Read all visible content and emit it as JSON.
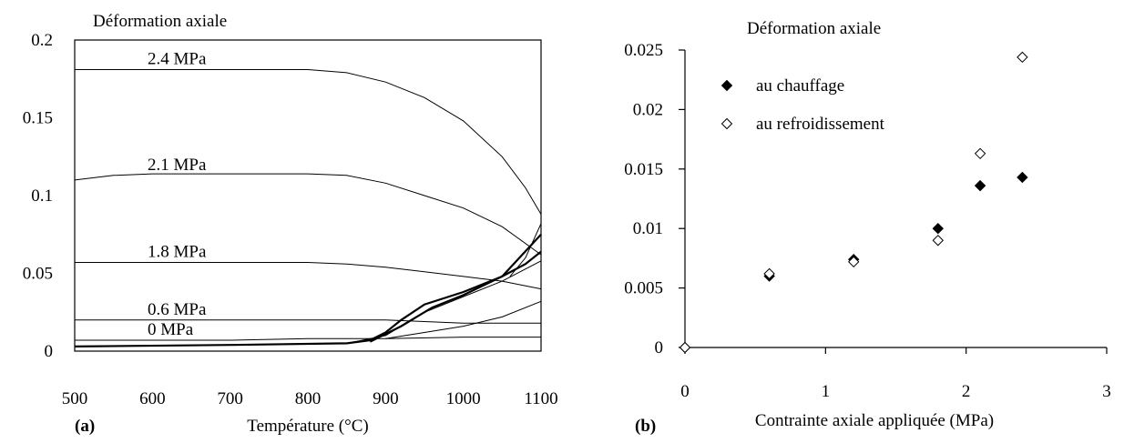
{
  "chart_data": [
    {
      "type": "line",
      "panel_label": "(a)",
      "title": "Déformation axiale",
      "xlabel": "Température (°C)",
      "ylabel": "",
      "xlim": [
        500,
        1100
      ],
      "ylim": [
        0,
        0.2
      ],
      "xticks": [
        "500",
        "600",
        "700",
        "800",
        "900",
        "1000",
        "1100"
      ],
      "yticks": [
        "0",
        "0.05",
        "0.1",
        "0.15",
        "0.2"
      ],
      "grid": false,
      "series": [
        {
          "name": "2.4 MPa",
          "x": [
            500,
            600,
            700,
            800,
            850,
            900,
            950,
            1000,
            1050,
            1080,
            1100
          ],
          "y": [
            0.181,
            0.181,
            0.181,
            0.181,
            0.179,
            0.173,
            0.163,
            0.148,
            0.125,
            0.105,
            0.088
          ]
        },
        {
          "name": "2.1 MPa",
          "x": [
            500,
            550,
            600,
            700,
            800,
            850,
            900,
            950,
            1000,
            1050,
            1100
          ],
          "y": [
            0.11,
            0.113,
            0.114,
            0.114,
            0.114,
            0.113,
            0.108,
            0.1,
            0.092,
            0.08,
            0.062
          ]
        },
        {
          "name": "1.8 MPa",
          "x": [
            500,
            600,
            700,
            800,
            850,
            900,
            950,
            1000,
            1050,
            1100
          ],
          "y": [
            0.057,
            0.057,
            0.057,
            0.057,
            0.056,
            0.054,
            0.051,
            0.048,
            0.045,
            0.04
          ]
        },
        {
          "name": "0.6 MPa",
          "x": [
            500,
            600,
            700,
            800,
            850,
            900,
            950,
            1000,
            1050,
            1100
          ],
          "y": [
            0.02,
            0.02,
            0.02,
            0.02,
            0.02,
            0.02,
            0.019,
            0.018,
            0.018,
            0.018
          ]
        },
        {
          "name": "0 MPa",
          "x": [
            500,
            600,
            700,
            800,
            900,
            1000,
            1100
          ],
          "y": [
            0.007,
            0.007,
            0.007,
            0.008,
            0.008,
            0.009,
            0.009
          ]
        },
        {
          "name": "",
          "x": [
            500,
            700,
            850,
            880,
            900,
            920,
            950,
            1000,
            1050,
            1080,
            1100
          ],
          "y": [
            0.003,
            0.004,
            0.005,
            0.007,
            0.012,
            0.02,
            0.03,
            0.038,
            0.048,
            0.056,
            0.064
          ]
        },
        {
          "name": "",
          "x": [
            850,
            900,
            950,
            1000,
            1050,
            1100
          ],
          "y": [
            0.005,
            0.01,
            0.025,
            0.035,
            0.045,
            0.058
          ]
        },
        {
          "name": "",
          "x": [
            880,
            920,
            960,
            1000,
            1050,
            1100
          ],
          "y": [
            0.006,
            0.016,
            0.028,
            0.036,
            0.048,
            0.075
          ]
        },
        {
          "name": "",
          "x": [
            900,
            950,
            1000,
            1050,
            1100
          ],
          "y": [
            0.008,
            0.012,
            0.016,
            0.022,
            0.032
          ]
        },
        {
          "name": "",
          "x": [
            1060,
            1080,
            1100
          ],
          "y": [
            0.048,
            0.06,
            0.082
          ]
        }
      ]
    },
    {
      "type": "scatter",
      "panel_label": "(b)",
      "title": "Déformation axiale",
      "xlabel": "Contrainte axiale appliquée (MPa)",
      "ylabel": "",
      "xlim": [
        0,
        3
      ],
      "ylim": [
        0,
        0.025
      ],
      "xticks": [
        "0",
        "1",
        "2",
        "3"
      ],
      "yticks": [
        "0",
        "0.005",
        "0.01",
        "0.015",
        "0.02",
        "0.025"
      ],
      "grid": false,
      "legend_position": "top-left",
      "series": [
        {
          "name": "au chauffage",
          "marker": "filled-diamond",
          "x": [
            0,
            0.6,
            1.2,
            1.8,
            2.1,
            2.4
          ],
          "y": [
            0,
            0.006,
            0.0074,
            0.01,
            0.0136,
            0.0143
          ]
        },
        {
          "name": "au refroidissement",
          "marker": "open-diamond",
          "x": [
            0,
            0.6,
            1.2,
            1.8,
            2.1,
            2.4
          ],
          "y": [
            0,
            0.0062,
            0.0072,
            0.009,
            0.0163,
            0.0244
          ]
        }
      ]
    }
  ]
}
